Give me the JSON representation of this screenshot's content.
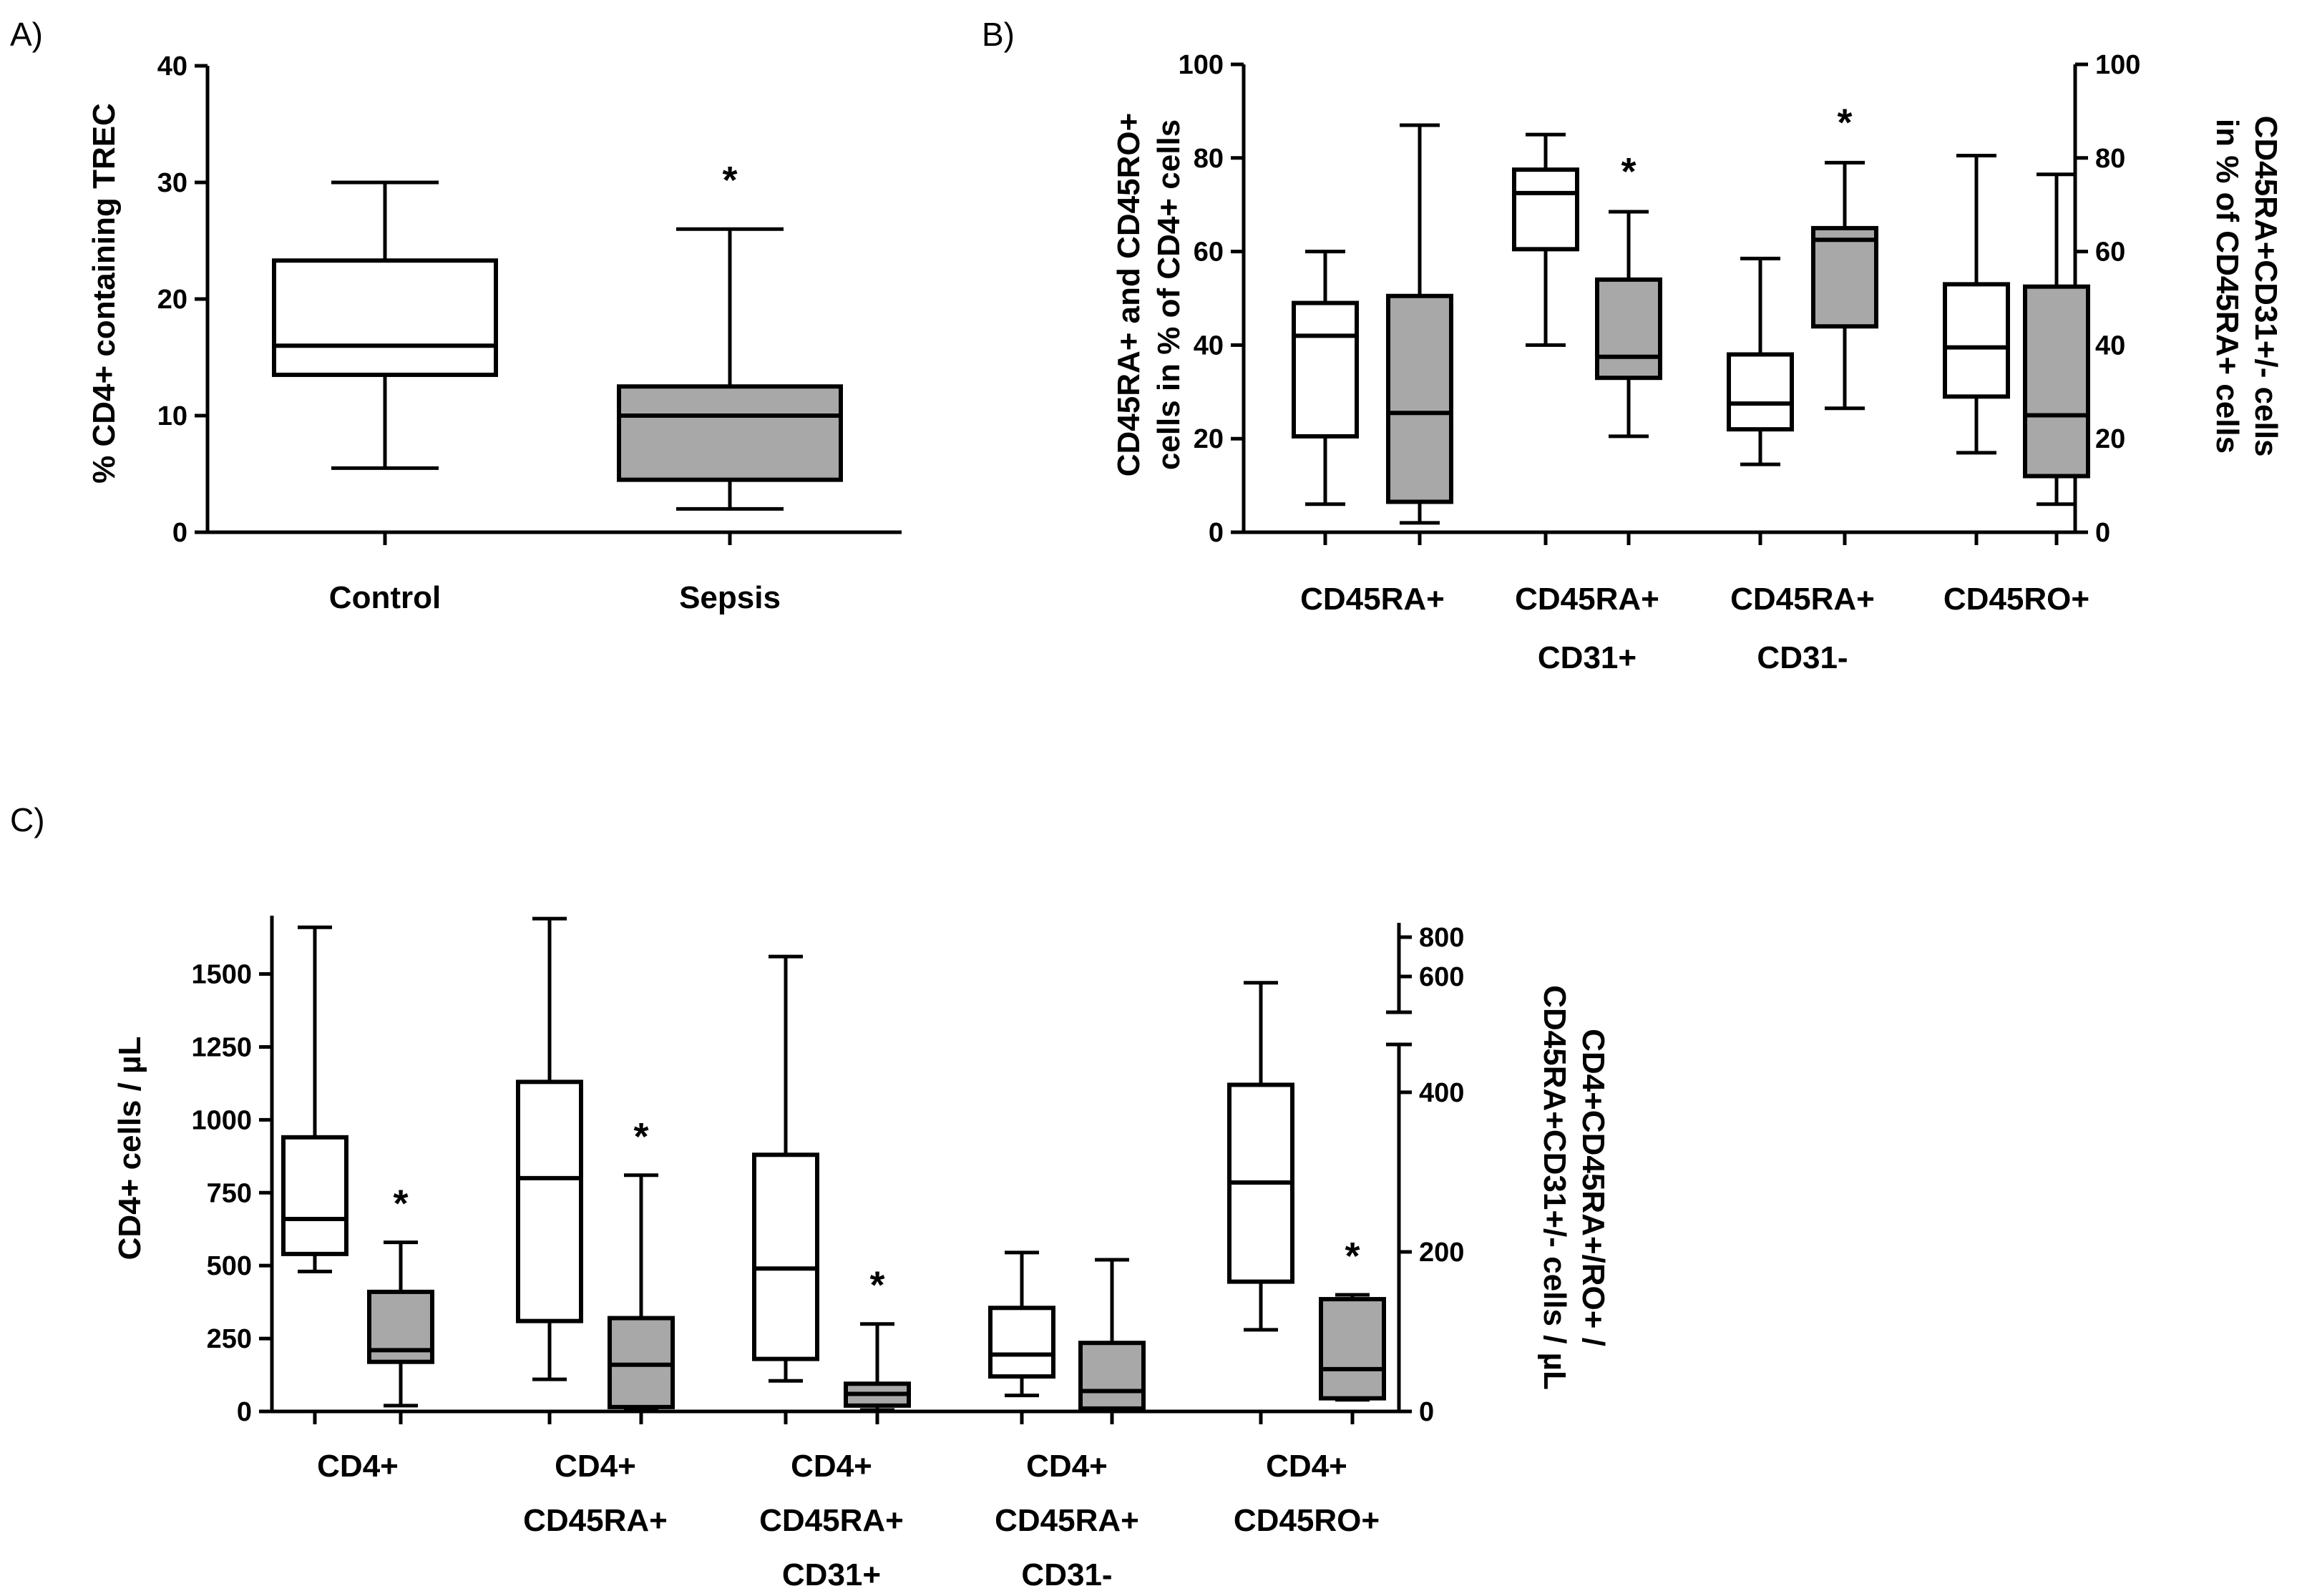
{
  "panels": {
    "a": "A)",
    "b": "B)",
    "c": "C)"
  },
  "colors": {
    "control": "#ffffff",
    "sepsis": "#a8a8a8",
    "stroke": "#000000"
  },
  "chart_data": [
    {
      "id": "A",
      "type": "box",
      "ylabel": "% CD4+ containing TREC",
      "ylim": [
        0,
        40
      ],
      "yticks": [
        0,
        10,
        20,
        30,
        40
      ],
      "categories": [
        "Control",
        "Sepsis"
      ],
      "boxes": [
        {
          "group": "Control",
          "fill": "white",
          "min": 5.5,
          "q1": 13.5,
          "median": 16,
          "q3": 23.3,
          "max": 30,
          "star": ""
        },
        {
          "group": "Sepsis",
          "fill": "gray",
          "min": 2,
          "q1": 4.5,
          "median": 10,
          "q3": 12.5,
          "max": 26,
          "star": "*"
        }
      ]
    },
    {
      "id": "B",
      "type": "box",
      "ylabel_left": [
        "CD45RA+ and CD45RO+",
        "cells in % of CD4+ cells"
      ],
      "ylabel_right": [
        "CD45RA+CD31+/- cells",
        "in % of CD45RA+ cells"
      ],
      "ylim": [
        0,
        100
      ],
      "yticks": [
        0,
        20,
        40,
        60,
        80,
        100
      ],
      "categories": [
        [
          "CD45RA+"
        ],
        [
          "CD45RA+",
          "CD31+"
        ],
        [
          "CD45RA+",
          "CD31-"
        ],
        [
          "CD45RO+"
        ]
      ],
      "boxes": [
        {
          "cat": 0,
          "fill": "white",
          "min": 6,
          "q1": 20.5,
          "median": 42,
          "q3": 49,
          "max": 60,
          "star": ""
        },
        {
          "cat": 0,
          "fill": "gray",
          "min": 2,
          "q1": 6.5,
          "median": 25.5,
          "q3": 50.5,
          "max": 87,
          "star": ""
        },
        {
          "cat": 1,
          "fill": "white",
          "min": 40,
          "q1": 60.5,
          "median": 72.5,
          "q3": 77.5,
          "max": 85,
          "star": ""
        },
        {
          "cat": 1,
          "fill": "gray",
          "min": 20.5,
          "q1": 33,
          "median": 37.5,
          "q3": 54,
          "max": 68.5,
          "star": "*"
        },
        {
          "cat": 2,
          "fill": "white",
          "min": 14.5,
          "q1": 22,
          "median": 27.5,
          "q3": 38,
          "max": 58.5,
          "star": ""
        },
        {
          "cat": 2,
          "fill": "gray",
          "min": 26.5,
          "q1": 44,
          "median": 62.5,
          "q3": 65,
          "max": 79,
          "star": "*"
        },
        {
          "cat": 3,
          "fill": "white",
          "min": 17,
          "q1": 29,
          "median": 39.5,
          "q3": 53,
          "max": 80.5,
          "star": ""
        },
        {
          "cat": 3,
          "fill": "gray",
          "min": 6,
          "q1": 12,
          "median": 25,
          "q3": 52.5,
          "max": 76.5,
          "star": ""
        }
      ]
    },
    {
      "id": "C",
      "type": "box",
      "ylabel_left": "CD4+ cells / µL",
      "ylabel_right": [
        "CD4+CD45RA+/RO+ /",
        "CD45RA+CD31+/- cells / µL"
      ],
      "ylim": [
        0,
        1700
      ],
      "yticks": [
        0,
        250,
        500,
        750,
        1000,
        1250,
        1500
      ],
      "right_yticks": [
        "0",
        "200",
        "400",
        "600",
        "800"
      ],
      "categories": [
        [
          "CD4+"
        ],
        [
          "CD4+",
          "CD45RA+"
        ],
        [
          "CD4+",
          "CD45RA+",
          "CD31+"
        ],
        [
          "CD4+",
          "CD45RA+",
          "CD31-"
        ],
        [
          "CD4+",
          "CD45RO+"
        ]
      ],
      "boxes": [
        {
          "cat": 0,
          "fill": "white",
          "min": 480,
          "q1": 540,
          "median": 660,
          "q3": 940,
          "max": 1660,
          "star": ""
        },
        {
          "cat": 0,
          "fill": "gray",
          "min": 20,
          "q1": 170,
          "median": 210,
          "q3": 410,
          "max": 580,
          "star": "*"
        },
        {
          "cat": 1,
          "fill": "white",
          "min": 110,
          "q1": 310,
          "median": 800,
          "q3": 1130,
          "max": 1690,
          "star": ""
        },
        {
          "cat": 1,
          "fill": "gray",
          "min": 5,
          "q1": 15,
          "median": 160,
          "q3": 320,
          "max": 810,
          "star": "*"
        },
        {
          "cat": 2,
          "fill": "white",
          "min": 105,
          "q1": 180,
          "median": 490,
          "q3": 880,
          "max": 1560,
          "star": ""
        },
        {
          "cat": 2,
          "fill": "gray",
          "min": 5,
          "q1": 20,
          "median": 60,
          "q3": 95,
          "max": 300,
          "star": "*"
        },
        {
          "cat": 3,
          "fill": "white",
          "min": 55,
          "q1": 120,
          "median": 195,
          "q3": 355,
          "max": 545,
          "star": ""
        },
        {
          "cat": 3,
          "fill": "gray",
          "min": 5,
          "q1": 10,
          "median": 70,
          "q3": 235,
          "max": 520,
          "star": ""
        },
        {
          "cat": 4,
          "fill": "white",
          "min": 280,
          "q1": 445,
          "median": 785,
          "q3": 1120,
          "max": 1470,
          "star": ""
        },
        {
          "cat": 4,
          "fill": "gray",
          "min": 40,
          "q1": 45,
          "median": 145,
          "q3": 385,
          "max": 400,
          "star": "*"
        }
      ]
    }
  ]
}
